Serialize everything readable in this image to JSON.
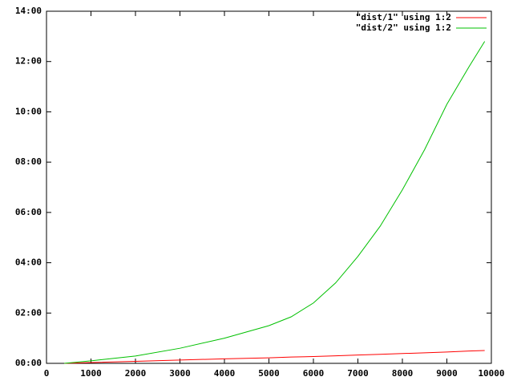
{
  "chart_data": {
    "type": "line",
    "x": [
      400,
      1000,
      2000,
      3000,
      4000,
      5000,
      5500,
      6000,
      6500,
      7000,
      7500,
      8000,
      8500,
      9000,
      9500,
      9850
    ],
    "series": [
      {
        "name": "\"dist/1\" using 1:2",
        "color": "#ff0000",
        "values": [
          0,
          0.03,
          0.08,
          0.13,
          0.18,
          0.22,
          0.25,
          0.27,
          0.3,
          0.33,
          0.36,
          0.39,
          0.42,
          0.45,
          0.49,
          0.51
        ]
      },
      {
        "name": "\"dist/2\" using 1:2",
        "color": "#00c000",
        "values": [
          0,
          0.1,
          0.29,
          0.6,
          1.0,
          1.5,
          1.85,
          2.4,
          3.2,
          4.25,
          5.45,
          6.9,
          8.5,
          10.3,
          11.8,
          12.8
        ]
      }
    ],
    "xlim": [
      0,
      10000
    ],
    "xticks": [
      0,
      1000,
      2000,
      3000,
      4000,
      5000,
      6000,
      7000,
      8000,
      9000,
      10000
    ],
    "ylim": [
      0,
      14
    ],
    "yticks": [
      {
        "value": 0,
        "label": "00:00"
      },
      {
        "value": 2,
        "label": "02:00"
      },
      {
        "value": 4,
        "label": "04:00"
      },
      {
        "value": 6,
        "label": "06:00"
      },
      {
        "value": 8,
        "label": "08:00"
      },
      {
        "value": 10,
        "label": "10:00"
      },
      {
        "value": 12,
        "label": "12:00"
      },
      {
        "value": 14,
        "label": "14:00"
      }
    ],
    "legend": "top-right"
  }
}
